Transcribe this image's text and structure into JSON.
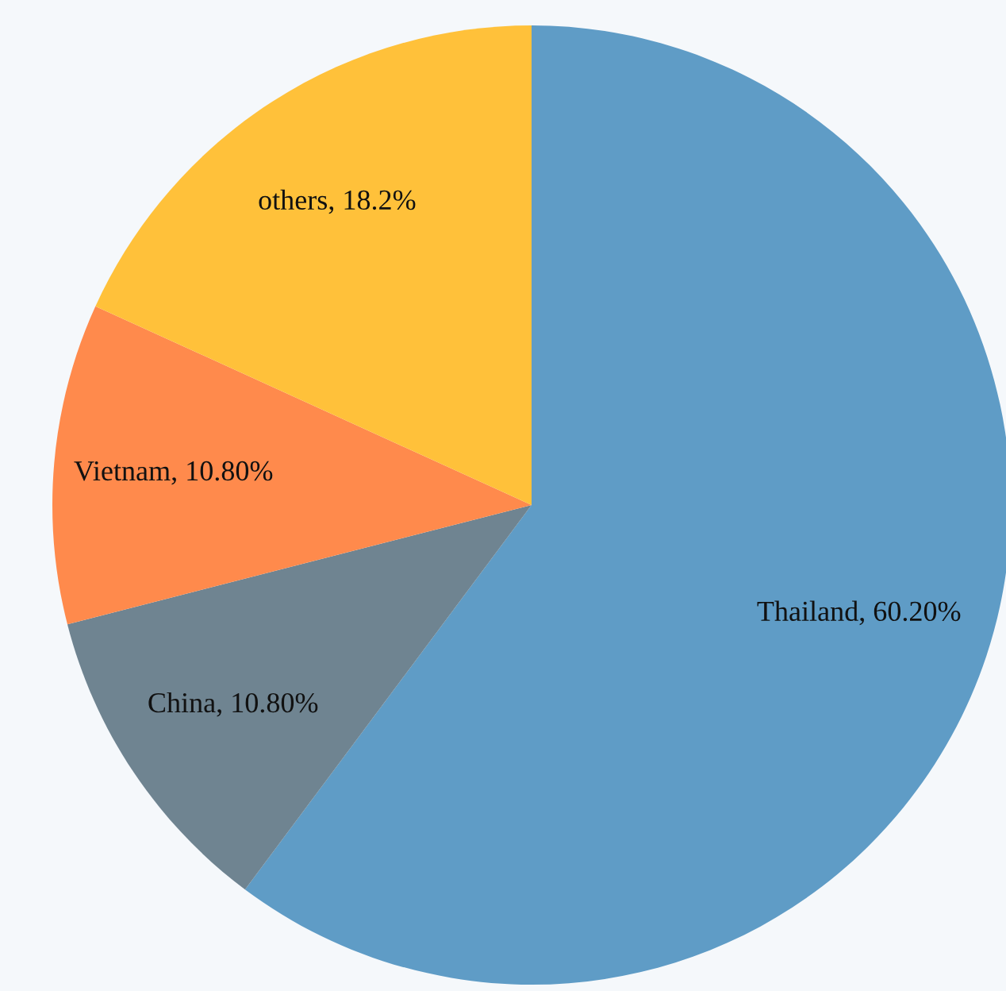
{
  "chart_data": {
    "type": "pie",
    "categories": [
      "Thailand",
      "China",
      "Vietnam",
      "others"
    ],
    "values": [
      60.2,
      10.8,
      10.8,
      18.2
    ],
    "value_labels": [
      "60.20%",
      "10.80%",
      "10.80%",
      "18.2%"
    ],
    "colors": [
      "#5f9cc6",
      "#6f8491",
      "#ff8a4c",
      "#ffc13a"
    ]
  }
}
